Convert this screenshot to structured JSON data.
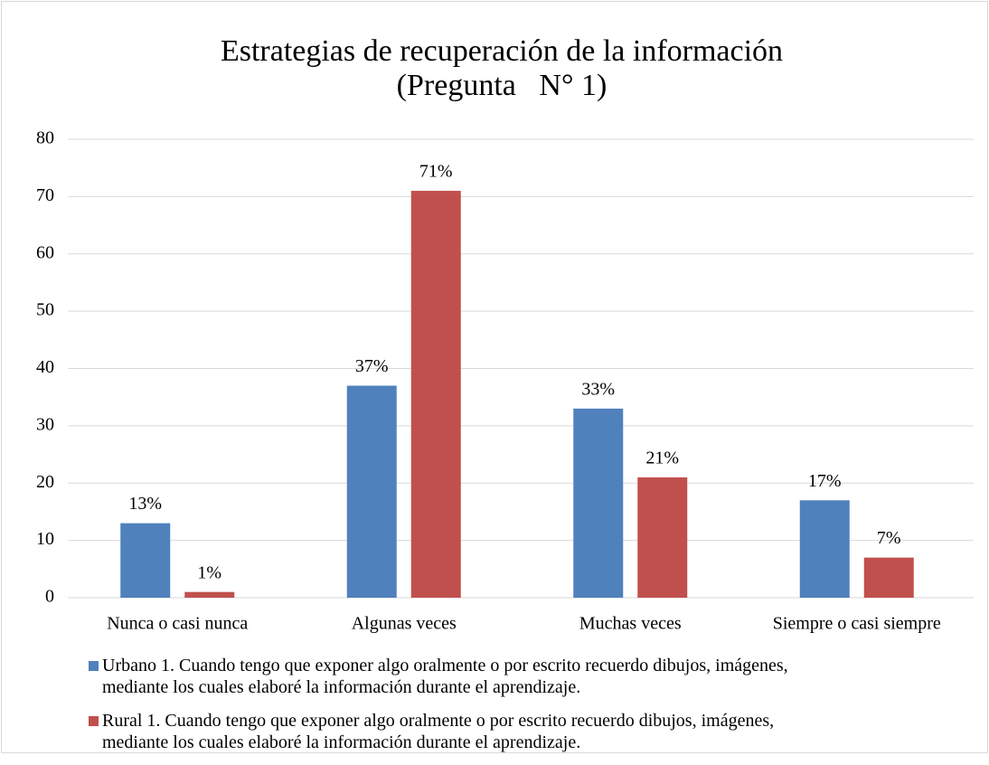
{
  "chart_data": {
    "type": "bar",
    "title": "Estrategias de recuperación de la información\n(Pregunta   N° 1)",
    "categories": [
      "Nunca o casi nunca",
      "Algunas veces",
      "Muchas veces",
      "Siempre o casi siempre"
    ],
    "series": [
      {
        "name": "Urbano 1. Cuando tengo que exponer algo oralmente o por escrito recuerdo dibujos, imágenes, mediante los cuales elaboré la información durante el aprendizaje.",
        "color": "#4f81bd",
        "values": [
          13,
          37,
          33,
          17
        ],
        "value_labels": [
          "13%",
          "37%",
          "33%",
          "17%"
        ]
      },
      {
        "name": "Rural 1. Cuando tengo que exponer algo oralmente o por escrito recuerdo dibujos, imágenes, mediante los cuales elaboré la información durante el aprendizaje.",
        "color": "#c0504d",
        "values": [
          1,
          71,
          21,
          7
        ],
        "value_labels": [
          "1%",
          "71%",
          "21%",
          "7%"
        ]
      }
    ],
    "ylim": [
      0,
      80
    ],
    "yticks": [
      0,
      10,
      20,
      30,
      40,
      50,
      60,
      70,
      80
    ],
    "grid": true,
    "legend": "bottom"
  }
}
